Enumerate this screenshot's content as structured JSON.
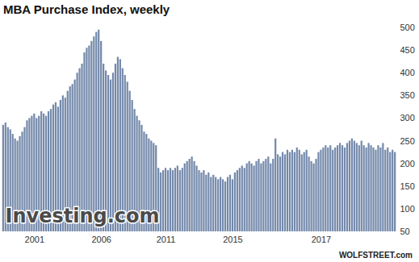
{
  "chart_data": {
    "type": "bar",
    "title": "MBA Purchase Index, weekly",
    "watermark": "Investing.com",
    "source": "WOLFSTREET.com",
    "color": "#7489ab",
    "grid": false,
    "ylim": [
      50,
      500
    ],
    "yticks": [
      50,
      100,
      150,
      200,
      250,
      300,
      350,
      400,
      450,
      500
    ],
    "categories": [
      null,
      null,
      null,
      null,
      null,
      null,
      null,
      null,
      null,
      null,
      null,
      null,
      null,
      "2001",
      null,
      null,
      null,
      null,
      null,
      null,
      null,
      null,
      null,
      null,
      null,
      null,
      null,
      null,
      null,
      null,
      null,
      null,
      null,
      null,
      null,
      null,
      null,
      null,
      null,
      null,
      null,
      "2006",
      null,
      null,
      null,
      null,
      null,
      null,
      null,
      null,
      null,
      null,
      null,
      null,
      null,
      null,
      null,
      null,
      null,
      null,
      null,
      null,
      null,
      null,
      null,
      null,
      null,
      null,
      "2011",
      null,
      null,
      null,
      null,
      null,
      null,
      null,
      null,
      null,
      null,
      null,
      null,
      null,
      null,
      null,
      null,
      null,
      null,
      null,
      null,
      null,
      null,
      null,
      null,
      null,
      null,
      null,
      "2015",
      null,
      null,
      null,
      null,
      null,
      null,
      null,
      null,
      null,
      null,
      null,
      null,
      null,
      null,
      null,
      null,
      null,
      null,
      null,
      null,
      null,
      null,
      null,
      null,
      null,
      null,
      null,
      null,
      null,
      null,
      null,
      null,
      null,
      null,
      null,
      null,
      "2017",
      null,
      null,
      null,
      null,
      null,
      null,
      null,
      null,
      null,
      null,
      null,
      null,
      null,
      null,
      null,
      null,
      null,
      null,
      null,
      null,
      null,
      null,
      null,
      null,
      null,
      null,
      null,
      null,
      null,
      null,
      null
    ],
    "values": [
      285,
      290,
      280,
      275,
      265,
      255,
      250,
      260,
      270,
      280,
      295,
      300,
      305,
      310,
      300,
      305,
      315,
      310,
      305,
      315,
      320,
      330,
      335,
      325,
      340,
      350,
      345,
      360,
      370,
      375,
      385,
      400,
      410,
      420,
      445,
      455,
      460,
      470,
      480,
      490,
      495,
      470,
      420,
      405,
      395,
      385,
      400,
      420,
      435,
      430,
      410,
      395,
      380,
      360,
      340,
      320,
      305,
      295,
      285,
      270,
      265,
      255,
      250,
      245,
      240,
      190,
      180,
      185,
      190,
      185,
      190,
      185,
      190,
      195,
      185,
      190,
      200,
      205,
      210,
      215,
      205,
      195,
      185,
      180,
      185,
      175,
      180,
      170,
      175,
      170,
      165,
      170,
      165,
      160,
      170,
      175,
      165,
      180,
      185,
      190,
      195,
      190,
      200,
      205,
      200,
      195,
      205,
      210,
      200,
      205,
      210,
      215,
      200,
      210,
      255,
      220,
      215,
      225,
      220,
      230,
      225,
      230,
      225,
      235,
      230,
      220,
      225,
      230,
      215,
      205,
      200,
      210,
      225,
      230,
      235,
      240,
      235,
      240,
      230,
      235,
      240,
      245,
      240,
      235,
      245,
      250,
      255,
      250,
      245,
      240,
      250,
      240,
      235,
      245,
      240,
      235,
      230,
      240,
      235,
      245,
      230,
      235,
      225,
      230,
      225
    ]
  }
}
